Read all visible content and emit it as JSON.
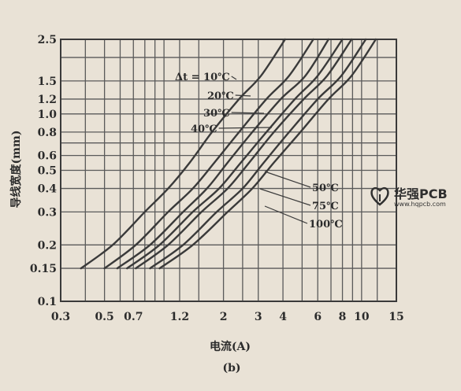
{
  "chart_data": {
    "type": "line",
    "xlabel": "电流(A)",
    "ylabel": "导线宽度(mm)",
    "caption": "(b)",
    "x_scale": "log",
    "y_scale": "log",
    "xlim": [
      0.3,
      15
    ],
    "ylim": [
      0.1,
      2.5
    ],
    "grid": true,
    "x_ticks": [
      0.3,
      0.5,
      0.7,
      1.2,
      2,
      3,
      4,
      6,
      8,
      10,
      15
    ],
    "x_tick_labels": [
      "0.3",
      "0.5",
      "0.7",
      "1.2",
      "2",
      "3",
      "4",
      "6",
      "8",
      "10",
      "15"
    ],
    "y_ticks": [
      0.1,
      0.15,
      0.2,
      0.3,
      0.4,
      0.5,
      0.6,
      0.8,
      1.0,
      1.2,
      1.5,
      2.5
    ],
    "y_tick_labels": [
      "0.1",
      "0.15",
      "0.2",
      "0.3",
      "0.4",
      "0.5",
      "0.6",
      "0.8",
      "1.0",
      "1.2",
      "1.5",
      "2.5"
    ],
    "series": [
      {
        "name": "10℃",
        "label": "Δt = 10℃",
        "points": [
          [
            0.38,
            0.15
          ],
          [
            0.55,
            0.2
          ],
          [
            0.8,
            0.3
          ],
          [
            1.05,
            0.4
          ],
          [
            1.35,
            0.55
          ],
          [
            1.75,
            0.8
          ],
          [
            2.4,
            1.2
          ],
          [
            3.1,
            1.6
          ],
          [
            4.1,
            2.5
          ]
        ]
      },
      {
        "name": "20℃",
        "label": "20℃",
        "points": [
          [
            0.5,
            0.15
          ],
          [
            0.72,
            0.2
          ],
          [
            1.05,
            0.3
          ],
          [
            1.4,
            0.4
          ],
          [
            1.8,
            0.55
          ],
          [
            2.4,
            0.8
          ],
          [
            3.3,
            1.2
          ],
          [
            4.3,
            1.6
          ],
          [
            5.7,
            2.5
          ]
        ]
      },
      {
        "name": "30℃",
        "label": "30℃",
        "points": [
          [
            0.58,
            0.15
          ],
          [
            0.85,
            0.2
          ],
          [
            1.25,
            0.3
          ],
          [
            1.65,
            0.4
          ],
          [
            2.1,
            0.55
          ],
          [
            2.8,
            0.8
          ],
          [
            3.9,
            1.2
          ],
          [
            5.2,
            1.6
          ],
          [
            6.8,
            2.5
          ]
        ]
      },
      {
        "name": "40℃",
        "label": "40℃",
        "points": [
          [
            0.65,
            0.15
          ],
          [
            0.95,
            0.2
          ],
          [
            1.4,
            0.3
          ],
          [
            1.9,
            0.4
          ],
          [
            2.45,
            0.55
          ],
          [
            3.3,
            0.8
          ],
          [
            4.6,
            1.2
          ],
          [
            6.0,
            1.6
          ],
          [
            8.0,
            2.5
          ]
        ]
      },
      {
        "name": "50℃",
        "label": "50℃",
        "points": [
          [
            0.72,
            0.15
          ],
          [
            1.05,
            0.2
          ],
          [
            1.55,
            0.3
          ],
          [
            2.1,
            0.4
          ],
          [
            2.7,
            0.55
          ],
          [
            3.6,
            0.8
          ],
          [
            5.1,
            1.2
          ],
          [
            6.7,
            1.6
          ],
          [
            8.9,
            2.5
          ]
        ]
      },
      {
        "name": "75℃",
        "label": "75℃",
        "points": [
          [
            0.85,
            0.15
          ],
          [
            1.25,
            0.2
          ],
          [
            1.85,
            0.3
          ],
          [
            2.5,
            0.4
          ],
          [
            3.2,
            0.55
          ],
          [
            4.3,
            0.8
          ],
          [
            6.0,
            1.2
          ],
          [
            7.9,
            1.6
          ],
          [
            10.5,
            2.5
          ]
        ]
      },
      {
        "name": "100℃",
        "label": "100℃",
        "points": [
          [
            0.95,
            0.15
          ],
          [
            1.4,
            0.2
          ],
          [
            2.1,
            0.3
          ],
          [
            2.8,
            0.4
          ],
          [
            3.6,
            0.55
          ],
          [
            4.9,
            0.8
          ],
          [
            6.8,
            1.2
          ],
          [
            8.9,
            1.6
          ],
          [
            11.8,
            2.5
          ]
        ]
      }
    ]
  },
  "watermark": {
    "brand": "华强PCB",
    "site": "www.hqpcb.com",
    "logo_icon": "heart-logo-icon"
  },
  "colors": {
    "background": "#e9e2d6",
    "ink": "#3a3a3a",
    "grid": "#5a5a5a"
  }
}
